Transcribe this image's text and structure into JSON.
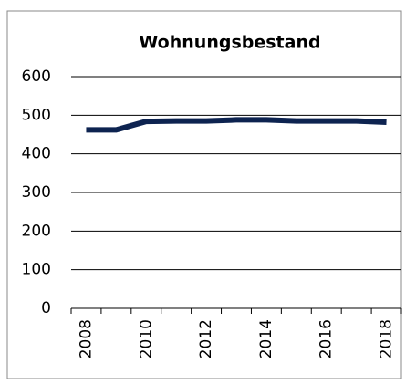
{
  "chart_data": {
    "type": "line",
    "title": "Wohnungsbestand",
    "categories": [
      "2008",
      null,
      "2010",
      null,
      "2012",
      null,
      "2014",
      null,
      "2016",
      null,
      "2018"
    ],
    "series": [
      {
        "name": "Wohnungsbestand",
        "color": "#0d2350",
        "values": [
          462,
          462,
          484,
          485,
          485,
          488,
          488,
          485,
          485,
          485,
          482
        ]
      }
    ],
    "ylim": [
      0,
      600
    ],
    "yticks": [
      0,
      100,
      200,
      300,
      400,
      500,
      600
    ],
    "grid": true
  }
}
